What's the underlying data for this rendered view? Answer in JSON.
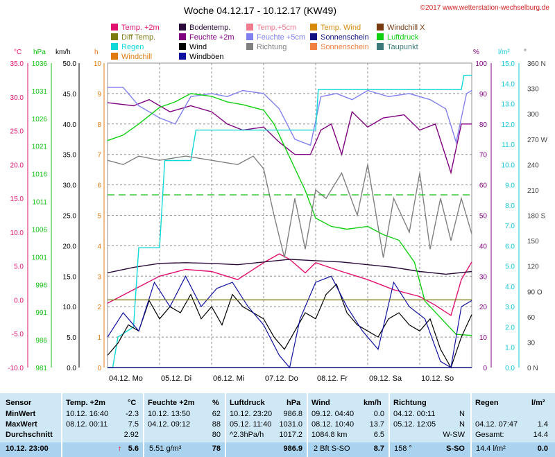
{
  "title": "Woche 04.12.17 - 10.12.17 (KW49)",
  "copyright": "©2017 www.wetterstation-wechselburg.de",
  "legend": [
    {
      "label": "Temp. +2m",
      "color": "#e0106f"
    },
    {
      "label": "Bodentemp.",
      "color": "#2a0a3a"
    },
    {
      "label": "Temp.+5cm",
      "color": "#f07a8e"
    },
    {
      "label": "Temp. Wind",
      "color": "#d88a0a"
    },
    {
      "label": "Windchill X",
      "color": "#7a3a10"
    },
    {
      "label": "Diff Temp.",
      "color": "#7a7a10"
    },
    {
      "label": "Feuchte +2m",
      "color": "#800080"
    },
    {
      "label": "Feuchte +5cm",
      "color": "#8080f0"
    },
    {
      "label": "Sonnenschein",
      "color": "#101080"
    },
    {
      "label": "Luftdruck",
      "color": "#10d010"
    },
    {
      "label": "Regen",
      "color": "#10d8d8"
    },
    {
      "label": "Wind",
      "color": "#000000"
    },
    {
      "label": "Richtung",
      "color": "#808080"
    },
    {
      "label": "Sonnenschein",
      "color": "#f08040"
    },
    {
      "label": "Taupunkt",
      "color": "#3a7a7a"
    },
    {
      "label": "Windchill",
      "color": "#e07a10"
    },
    {
      "label": "Windböen",
      "color": "#1010a0"
    }
  ],
  "axes": {
    "temp_unit": "°C",
    "hpa_unit": "hPa",
    "kmh_unit": "km/h",
    "h_unit": "h",
    "pct_unit": "%",
    "rain_unit": "l/m²",
    "dir_unit": "°",
    "temp_ticks": [
      "35.0",
      "30.0",
      "25.0",
      "20.0",
      "15.0",
      "10.0",
      "5.0",
      "0.0",
      "-5.0",
      "-10.0"
    ],
    "hpa_ticks": [
      "1036",
      "1031",
      "1026",
      "1021",
      "1016",
      "1011",
      "1006",
      "1001",
      "996",
      "991",
      "986",
      "981"
    ],
    "kmh_ticks": [
      "50.0",
      "45.0",
      "40.0",
      "35.0",
      "30.0",
      "25.0",
      "20.0",
      "15.0",
      "10.0",
      "5.0",
      "0.0"
    ],
    "h_ticks": [
      "10",
      "9",
      "8",
      "7",
      "6",
      "5",
      "4",
      "3",
      "2",
      "1",
      "0"
    ],
    "pct_ticks": [
      "100",
      "90",
      "80",
      "70",
      "60",
      "50",
      "40",
      "30",
      "20",
      "10",
      "0"
    ],
    "rain_ticks": [
      "15.0",
      "14.0",
      "13.0",
      "12.0",
      "11.0",
      "10.0",
      "9.0",
      "8.0",
      "7.0",
      "6.0",
      "5.0",
      "4.0",
      "3.0",
      "2.0",
      "1.0",
      "0.0"
    ],
    "dir_ticks": [
      "360 N",
      "330",
      "300",
      "270 W",
      "240",
      "210",
      "180 S",
      "150",
      "120",
      "90 O",
      "60",
      "30",
      "0 N"
    ],
    "colors": {
      "temp": "#e0106f",
      "hpa": "#10c010",
      "kmh": "#000000",
      "h": "#e07a10",
      "pct": "#800080",
      "rain": "#10c8d8",
      "dir": "#404040"
    }
  },
  "chart_data": {
    "type": "line",
    "title": "Woche 04.12.17 - 10.12.17 (KW49)",
    "x_categories": [
      "04.12. Mo",
      "05.12. Di",
      "06.12. Mi",
      "07.12. Do",
      "08.12. Fr",
      "09.12. Sa",
      "10.12. So"
    ],
    "xlim_days": [
      0,
      7
    ],
    "grid": true,
    "series": [
      {
        "name": "Temp. +2m",
        "axis": "temp",
        "values": [
          [
            0,
            -0.5
          ],
          [
            0.5,
            1.5
          ],
          [
            1,
            3.5
          ],
          [
            1.5,
            4.5
          ],
          [
            2,
            4.2
          ],
          [
            2.5,
            3.0
          ],
          [
            3,
            5.5
          ],
          [
            3.3,
            6.8
          ],
          [
            3.5,
            6.0
          ],
          [
            3.8,
            4.0
          ],
          [
            4,
            5.5
          ],
          [
            4.5,
            4.2
          ],
          [
            5,
            3.0
          ],
          [
            5.5,
            1.5
          ],
          [
            6,
            0.5
          ],
          [
            6.3,
            -0.8
          ],
          [
            6.6,
            -2.3
          ],
          [
            6.8,
            3.0
          ],
          [
            7,
            5.6
          ]
        ]
      },
      {
        "name": "Bodentemp.",
        "axis": "temp",
        "values": [
          [
            0,
            4.0
          ],
          [
            0.5,
            4.8
          ],
          [
            1,
            5.4
          ],
          [
            1.5,
            5.5
          ],
          [
            2,
            5.4
          ],
          [
            2.5,
            5.2
          ],
          [
            3,
            5.6
          ],
          [
            3.5,
            6.0
          ],
          [
            4,
            5.8
          ],
          [
            4.5,
            5.6
          ],
          [
            5,
            5.2
          ],
          [
            5.5,
            4.8
          ],
          [
            6,
            4.2
          ],
          [
            6.5,
            3.8
          ],
          [
            7,
            4.2
          ]
        ]
      },
      {
        "name": "Feuchte +2m",
        "axis": "pct",
        "values": [
          [
            0,
            87
          ],
          [
            0.5,
            86
          ],
          [
            0.8,
            88
          ],
          [
            1.2,
            84
          ],
          [
            1.6,
            86
          ],
          [
            2,
            84
          ],
          [
            2.3,
            80
          ],
          [
            2.6,
            78
          ],
          [
            3,
            79
          ],
          [
            3.3,
            74
          ],
          [
            3.6,
            70
          ],
          [
            3.9,
            70
          ],
          [
            4.1,
            78
          ],
          [
            4.3,
            80
          ],
          [
            4.5,
            70
          ],
          [
            4.7,
            84
          ],
          [
            5,
            79
          ],
          [
            5.3,
            82
          ],
          [
            5.7,
            83
          ],
          [
            6,
            78
          ],
          [
            6.3,
            80
          ],
          [
            6.6,
            64
          ],
          [
            6.8,
            80
          ],
          [
            7,
            80
          ]
        ]
      },
      {
        "name": "Feuchte +5cm",
        "axis": "pct",
        "values": [
          [
            0,
            92
          ],
          [
            0.3,
            92
          ],
          [
            0.6,
            86
          ],
          [
            1,
            82
          ],
          [
            1.3,
            80
          ],
          [
            1.6,
            89
          ],
          [
            2,
            90
          ],
          [
            2.3,
            89
          ],
          [
            2.6,
            91
          ],
          [
            3,
            90
          ],
          [
            3.3,
            85
          ],
          [
            3.6,
            75
          ],
          [
            3.9,
            73
          ],
          [
            4.1,
            89
          ],
          [
            4.4,
            90
          ],
          [
            4.7,
            88
          ],
          [
            5,
            91
          ],
          [
            5.4,
            89
          ],
          [
            5.8,
            90
          ],
          [
            6.2,
            88
          ],
          [
            6.5,
            85
          ],
          [
            6.7,
            74
          ],
          [
            6.9,
            90
          ],
          [
            7,
            91
          ]
        ]
      },
      {
        "name": "Luftdruck",
        "axis": "hpa",
        "values": [
          [
            0,
            1022
          ],
          [
            0.3,
            1023
          ],
          [
            0.6,
            1025
          ],
          [
            1,
            1028
          ],
          [
            1.3,
            1029
          ],
          [
            1.6,
            1030.5
          ],
          [
            2,
            1030
          ],
          [
            2.3,
            1029
          ],
          [
            2.6,
            1028.5
          ],
          [
            3,
            1027.5
          ],
          [
            3.2,
            1025
          ],
          [
            3.5,
            1019
          ],
          [
            3.8,
            1013
          ],
          [
            4,
            1008
          ],
          [
            4.3,
            1006.5
          ],
          [
            4.6,
            1006
          ],
          [
            5,
            1006.5
          ],
          [
            5.3,
            1005
          ],
          [
            5.6,
            1004
          ],
          [
            5.9,
            1000
          ],
          [
            6.1,
            993
          ],
          [
            6.4,
            990
          ],
          [
            6.7,
            987
          ],
          [
            7,
            986.8
          ]
        ]
      },
      {
        "name": "Regen",
        "axis": "rain",
        "values": [
          [
            0,
            0
          ],
          [
            0.1,
            0
          ],
          [
            0.2,
            1.5
          ],
          [
            0.5,
            2.0
          ],
          [
            0.6,
            5.9
          ],
          [
            1,
            5.9
          ],
          [
            1.1,
            10.2
          ],
          [
            1.6,
            10.2
          ],
          [
            1.7,
            11.7
          ],
          [
            3,
            11.7
          ],
          [
            4,
            11.7
          ],
          [
            4.05,
            13.7
          ],
          [
            6,
            13.7
          ],
          [
            6.8,
            13.7
          ],
          [
            6.85,
            14.4
          ],
          [
            7,
            14.4
          ]
        ]
      },
      {
        "name": "Wind",
        "axis": "kmh",
        "values": [
          [
            0,
            2
          ],
          [
            0.2,
            4
          ],
          [
            0.4,
            7
          ],
          [
            0.6,
            6
          ],
          [
            0.8,
            11
          ],
          [
            1,
            8
          ],
          [
            1.2,
            10
          ],
          [
            1.4,
            9
          ],
          [
            1.6,
            12
          ],
          [
            1.8,
            8
          ],
          [
            2,
            10
          ],
          [
            2.2,
            7
          ],
          [
            2.4,
            12
          ],
          [
            2.6,
            10
          ],
          [
            2.8,
            9
          ],
          [
            3,
            8
          ],
          [
            3.2,
            5
          ],
          [
            3.4,
            3
          ],
          [
            3.6,
            6
          ],
          [
            3.8,
            9
          ],
          [
            4,
            8
          ],
          [
            4.2,
            12
          ],
          [
            4.4,
            13.7
          ],
          [
            4.6,
            9
          ],
          [
            4.8,
            7
          ],
          [
            5,
            6
          ],
          [
            5.2,
            5
          ],
          [
            5.4,
            8
          ],
          [
            5.6,
            9
          ],
          [
            5.8,
            7
          ],
          [
            6,
            6
          ],
          [
            6.2,
            8
          ],
          [
            6.4,
            3
          ],
          [
            6.6,
            0
          ],
          [
            6.8,
            5
          ],
          [
            7,
            8.7
          ]
        ]
      },
      {
        "name": "Windböen",
        "axis": "kmh",
        "values": [
          [
            0,
            5
          ],
          [
            0.3,
            9
          ],
          [
            0.6,
            6
          ],
          [
            0.9,
            14
          ],
          [
            1.2,
            10
          ],
          [
            1.5,
            15
          ],
          [
            1.8,
            10
          ],
          [
            2.1,
            13
          ],
          [
            2.4,
            14
          ],
          [
            2.7,
            10
          ],
          [
            3,
            7
          ],
          [
            3.3,
            2
          ],
          [
            3.5,
            0
          ],
          [
            3.7,
            8
          ],
          [
            4,
            14
          ],
          [
            4.3,
            15
          ],
          [
            4.6,
            10
          ],
          [
            4.9,
            6
          ],
          [
            5.2,
            3
          ],
          [
            5.5,
            14
          ],
          [
            5.8,
            10
          ],
          [
            6.1,
            8
          ],
          [
            6.4,
            1
          ],
          [
            6.6,
            0
          ],
          [
            6.8,
            10
          ],
          [
            7,
            11
          ]
        ]
      },
      {
        "name": "Richtung",
        "axis": "dir",
        "values": [
          [
            0,
            245
          ],
          [
            0.3,
            240
          ],
          [
            0.6,
            250
          ],
          [
            1,
            245
          ],
          [
            1.5,
            250
          ],
          [
            2,
            245
          ],
          [
            2.5,
            240
          ],
          [
            2.8,
            250
          ],
          [
            3,
            235
          ],
          [
            3.2,
            180
          ],
          [
            3.4,
            130
          ],
          [
            3.6,
            200
          ],
          [
            3.8,
            140
          ],
          [
            4,
            210
          ],
          [
            4.2,
            200
          ],
          [
            4.5,
            230
          ],
          [
            4.8,
            180
          ],
          [
            5,
            240
          ],
          [
            5.3,
            130
          ],
          [
            5.5,
            200
          ],
          [
            5.8,
            160
          ],
          [
            6,
            230
          ],
          [
            6.2,
            140
          ],
          [
            6.4,
            200
          ],
          [
            6.6,
            150
          ],
          [
            6.8,
            200
          ],
          [
            7,
            158
          ]
        ]
      },
      {
        "name": "Sonnenschein",
        "axis": "h",
        "values": [
          [
            0,
            0
          ],
          [
            7,
            0
          ]
        ]
      },
      {
        "name": "Diff Temp.",
        "axis": "temp",
        "values": [
          [
            0,
            0
          ],
          [
            7,
            0
          ]
        ]
      }
    ]
  },
  "table": {
    "headers": {
      "sensor": "Sensor",
      "temp": "Temp. +2m",
      "temp_unit": "°C",
      "hum": "Feuchte +2m",
      "hum_unit": "%",
      "press": "Luftdruck",
      "press_unit": "hPa",
      "wind": "Wind",
      "wind_unit": "km/h",
      "dir": "Richtung",
      "rain": "Regen",
      "rain_unit": "l/m²"
    },
    "rows": [
      {
        "label": "MinWert",
        "temp_time": "10.12.  16:40",
        "temp_val": "-2.3",
        "hum_time": "10.12.  13:50",
        "hum_val": "62",
        "press_time": "10.12.  23:20",
        "press_val": "986.8",
        "wind_time": "09.12.  04:40",
        "wind_val": "0.0",
        "dir_time": "04.12.  00:11",
        "dir_val": "N",
        "rain_time": "",
        "rain_val": ""
      },
      {
        "label": "MaxWert",
        "temp_time": "08.12.  00:11",
        "temp_val": "7.5",
        "hum_time": "04.12.  09:12",
        "hum_val": "88",
        "press_time": "05.12.  11:40",
        "press_val": "1031.0",
        "wind_time": "08.12.  10:40",
        "wind_val": "13.7",
        "dir_time": "05.12.  12:05",
        "dir_val": "N",
        "rain_time": "04.12.  07:47",
        "rain_val": "1.4"
      },
      {
        "label": "Durchschnitt",
        "temp_time": "",
        "temp_val": "2.92",
        "hum_time": "",
        "hum_val": "80",
        "press_time": "^2.3hPa/h",
        "press_val": "1017.2",
        "wind_time": "1084.8 km",
        "wind_val": "6.5",
        "dir_time": "",
        "dir_val": "W-SW",
        "rain_time": "Gesamt:",
        "rain_val": "14.4"
      }
    ],
    "current": {
      "label": "10.12.  23:00",
      "temp_arrow": "↑",
      "temp_val": "5.6",
      "hum_extra": "5.51 g/m³",
      "hum_val": "78",
      "press_val": "986.9",
      "wind_extra": "2 Bft S-SO",
      "wind_val": "8.7",
      "dir_extra": "158 °",
      "dir_val": "S-SO",
      "rain_extra": "14.4 l/m²",
      "rain_val": "0.0"
    }
  }
}
